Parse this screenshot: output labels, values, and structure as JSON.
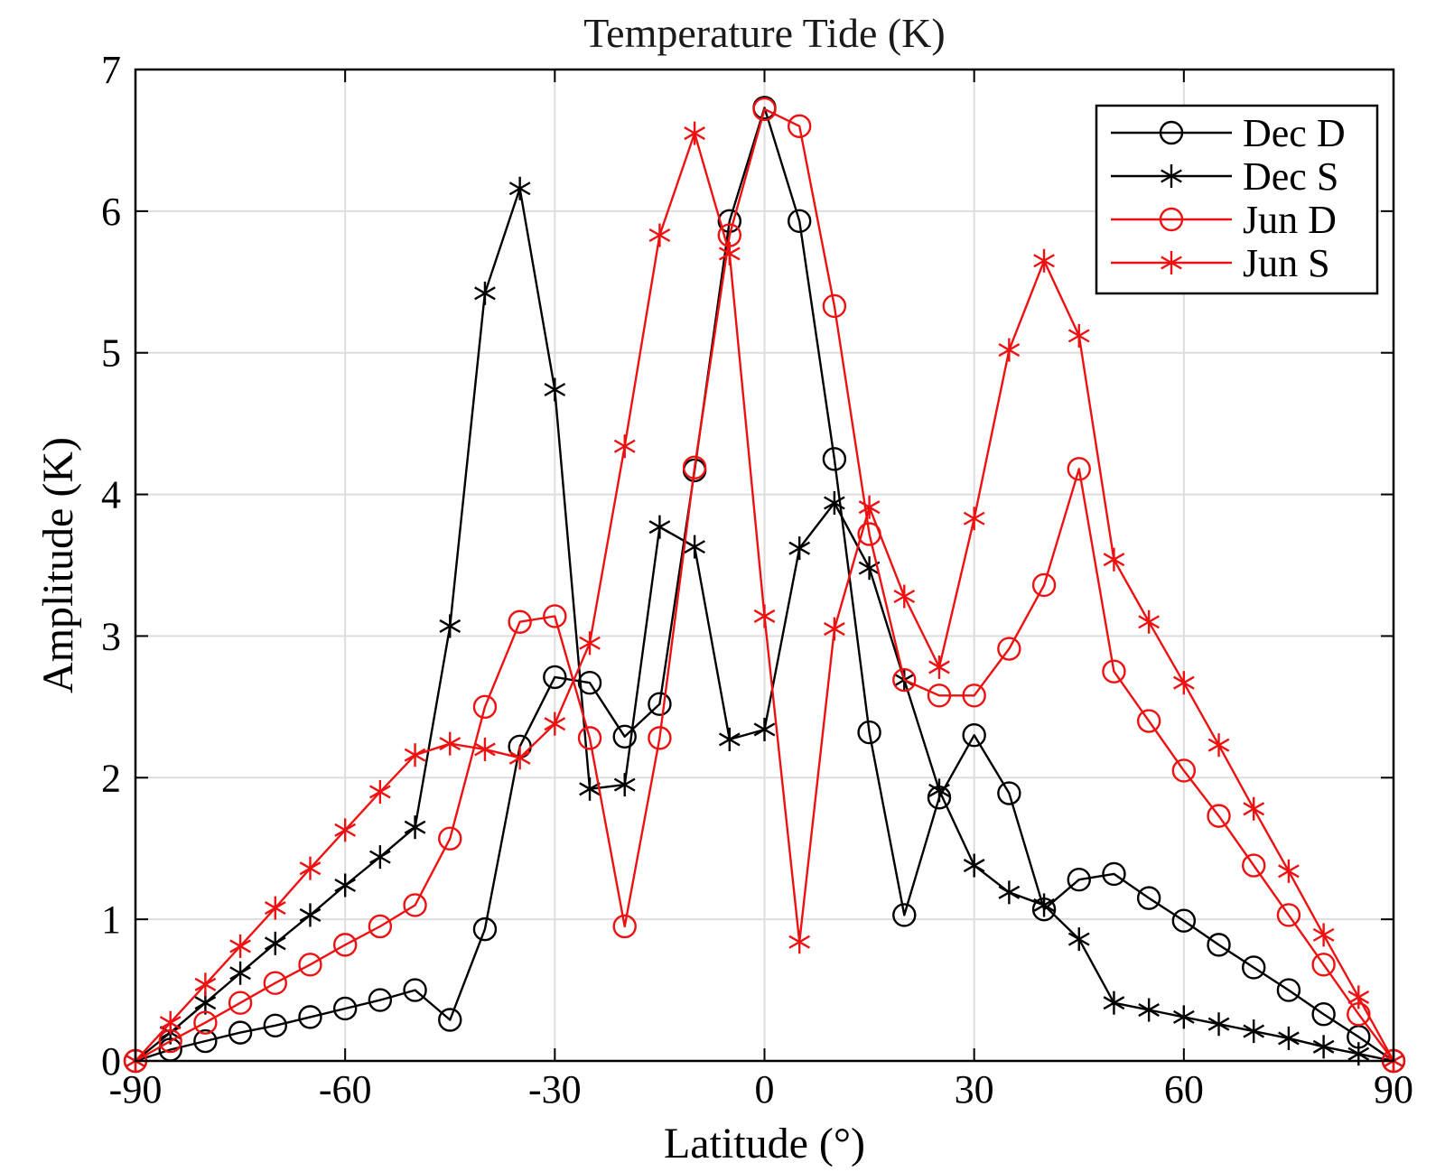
{
  "chart_data": {
    "type": "line",
    "title": "Temperature Tide (K)",
    "xlabel": "Latitude (°)",
    "ylabel": "Amplitude (K)",
    "xlim": [
      -90,
      90
    ],
    "ylim": [
      0,
      7
    ],
    "xticks": [
      -90,
      -60,
      -30,
      0,
      30,
      60,
      90
    ],
    "yticks": [
      0,
      1,
      2,
      3,
      4,
      5,
      6,
      7
    ],
    "grid": true,
    "legend_position": "top-right",
    "x": [
      -90,
      -85,
      -80,
      -75,
      -70,
      -65,
      -60,
      -55,
      -50,
      -45,
      -40,
      -35,
      -30,
      -25,
      -20,
      -15,
      -10,
      -5,
      0,
      5,
      10,
      15,
      20,
      25,
      30,
      35,
      40,
      45,
      50,
      55,
      60,
      65,
      70,
      75,
      80,
      85,
      90
    ],
    "series": [
      {
        "name": "Dec D",
        "color": "#000000",
        "marker": "circle",
        "values": [
          0,
          0.08,
          0.14,
          0.2,
          0.25,
          0.31,
          0.37,
          0.43,
          0.5,
          0.29,
          0.93,
          2.22,
          2.71,
          2.67,
          2.29,
          2.52,
          4.17,
          5.93,
          6.73,
          5.93,
          4.25,
          2.32,
          1.03,
          1.86,
          2.3,
          1.89,
          1.07,
          1.28,
          1.32,
          1.15,
          0.99,
          0.82,
          0.66,
          0.5,
          0.33,
          0.17,
          0
        ]
      },
      {
        "name": "Dec S",
        "color": "#000000",
        "marker": "star",
        "values": [
          0,
          0.2,
          0.41,
          0.62,
          0.83,
          1.03,
          1.24,
          1.44,
          1.65,
          3.07,
          5.42,
          6.16,
          4.74,
          1.92,
          1.95,
          3.77,
          3.63,
          2.27,
          2.34,
          3.62,
          3.94,
          3.48,
          2.69,
          1.91,
          1.38,
          1.19,
          1.1,
          0.86,
          0.41,
          0.36,
          0.31,
          0.26,
          0.21,
          0.16,
          0.1,
          0.05,
          0
        ]
      },
      {
        "name": "Jun D",
        "color": "#ee1111",
        "marker": "circle",
        "values": [
          0,
          0.14,
          0.27,
          0.41,
          0.55,
          0.68,
          0.82,
          0.95,
          1.1,
          1.57,
          2.5,
          3.1,
          3.14,
          2.28,
          0.95,
          2.28,
          4.19,
          5.83,
          6.72,
          6.6,
          5.33,
          3.72,
          2.69,
          2.58,
          2.58,
          2.91,
          3.36,
          4.18,
          2.75,
          2.4,
          2.05,
          1.73,
          1.38,
          1.03,
          0.68,
          0.33,
          0
        ]
      },
      {
        "name": "Jun S",
        "color": "#ee1111",
        "marker": "star",
        "values": [
          0,
          0.27,
          0.54,
          0.81,
          1.08,
          1.36,
          1.63,
          1.9,
          2.16,
          2.24,
          2.2,
          2.14,
          2.38,
          2.95,
          4.34,
          5.83,
          6.55,
          5.7,
          3.14,
          0.84,
          3.05,
          3.91,
          3.28,
          2.78,
          3.83,
          5.02,
          5.65,
          5.12,
          3.54,
          3.1,
          2.67,
          2.23,
          1.78,
          1.34,
          0.89,
          0.45,
          0
        ]
      }
    ]
  }
}
